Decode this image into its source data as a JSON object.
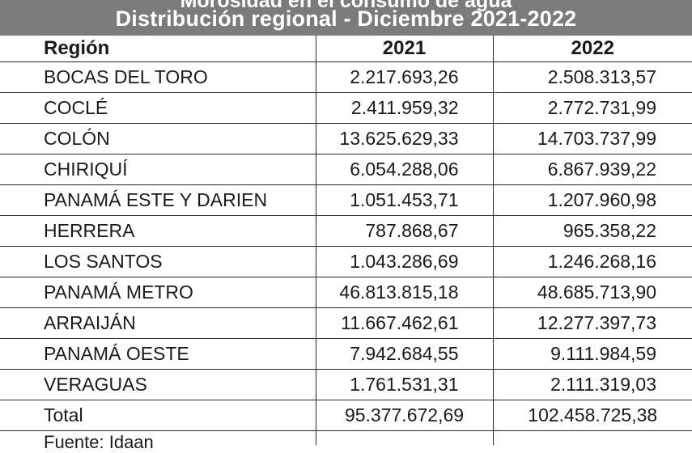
{
  "header": {
    "title": "Morosidad en el consumo de agua",
    "subtitle": "Distribución regional - Diciembre 2021-2022"
  },
  "table": {
    "columns": [
      "Región",
      "2021",
      "2022"
    ],
    "rows": [
      [
        "BOCAS DEL TORO",
        "2.217.693,26",
        "2.508.313,57"
      ],
      [
        "COCLÉ",
        "2.411.959,32",
        "2.772.731,99"
      ],
      [
        "COLÓN",
        "13.625.629,33",
        "14.703.737,99"
      ],
      [
        "CHIRIQUÍ",
        "6.054.288,06",
        "6.867.939,22"
      ],
      [
        "PANAMÁ ESTE Y DARIEN",
        "1.051.453,71",
        "1.207.960,98"
      ],
      [
        "HERRERA",
        "787.868,67",
        "965.358,22"
      ],
      [
        "LOS SANTOS",
        "1.043.286,69",
        "1.246.268,16"
      ],
      [
        "PANAMÁ METRO",
        "46.813.815,18",
        "48.685.713,90"
      ],
      [
        "ARRAIJÁN",
        "11.667.462,61",
        "12.277.397,73"
      ],
      [
        "PANAMÁ OESTE",
        "7.942.684,55",
        "9.111.984,59"
      ],
      [
        "VERAGUAS",
        "1.761.531,31",
        "2.111.319,03"
      ]
    ],
    "total": [
      "Total",
      "95.377.672,69",
      "102.458.725,38"
    ]
  },
  "source": "Fuente: Idaan"
}
